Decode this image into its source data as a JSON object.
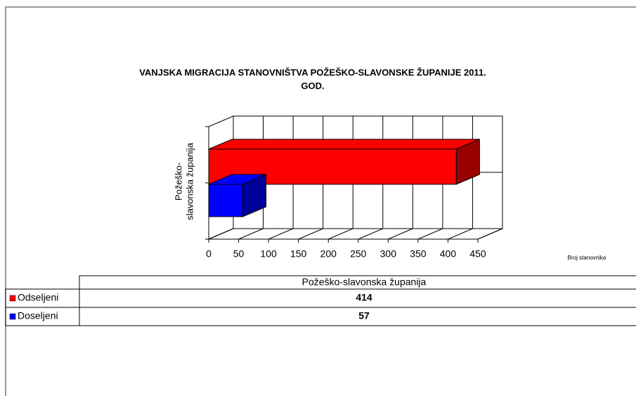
{
  "chart_data": {
    "type": "bar",
    "orientation": "horizontal",
    "title": [
      "VANJSKA MIGRACIJA STANOVNIŠTVA POŽEŠKO-SLAVONSKE  ŽUPANIJE  2011.",
      "GOD."
    ],
    "ylabel": [
      "Požeško-",
      "slavonska županija"
    ],
    "xlabel": "Broj stanovnika",
    "categories": [
      "Požeško-slavonska županija"
    ],
    "series": [
      {
        "name": "Odseljeni",
        "color": "#ff0000",
        "values": [
          414
        ]
      },
      {
        "name": "Doseljeni",
        "color": "#0000ff",
        "values": [
          57
        ]
      }
    ],
    "xlim": [
      0,
      450
    ],
    "xticks": [
      0,
      50,
      100,
      150,
      200,
      250,
      300,
      350,
      400,
      450
    ],
    "grid": true,
    "data_table": true
  }
}
